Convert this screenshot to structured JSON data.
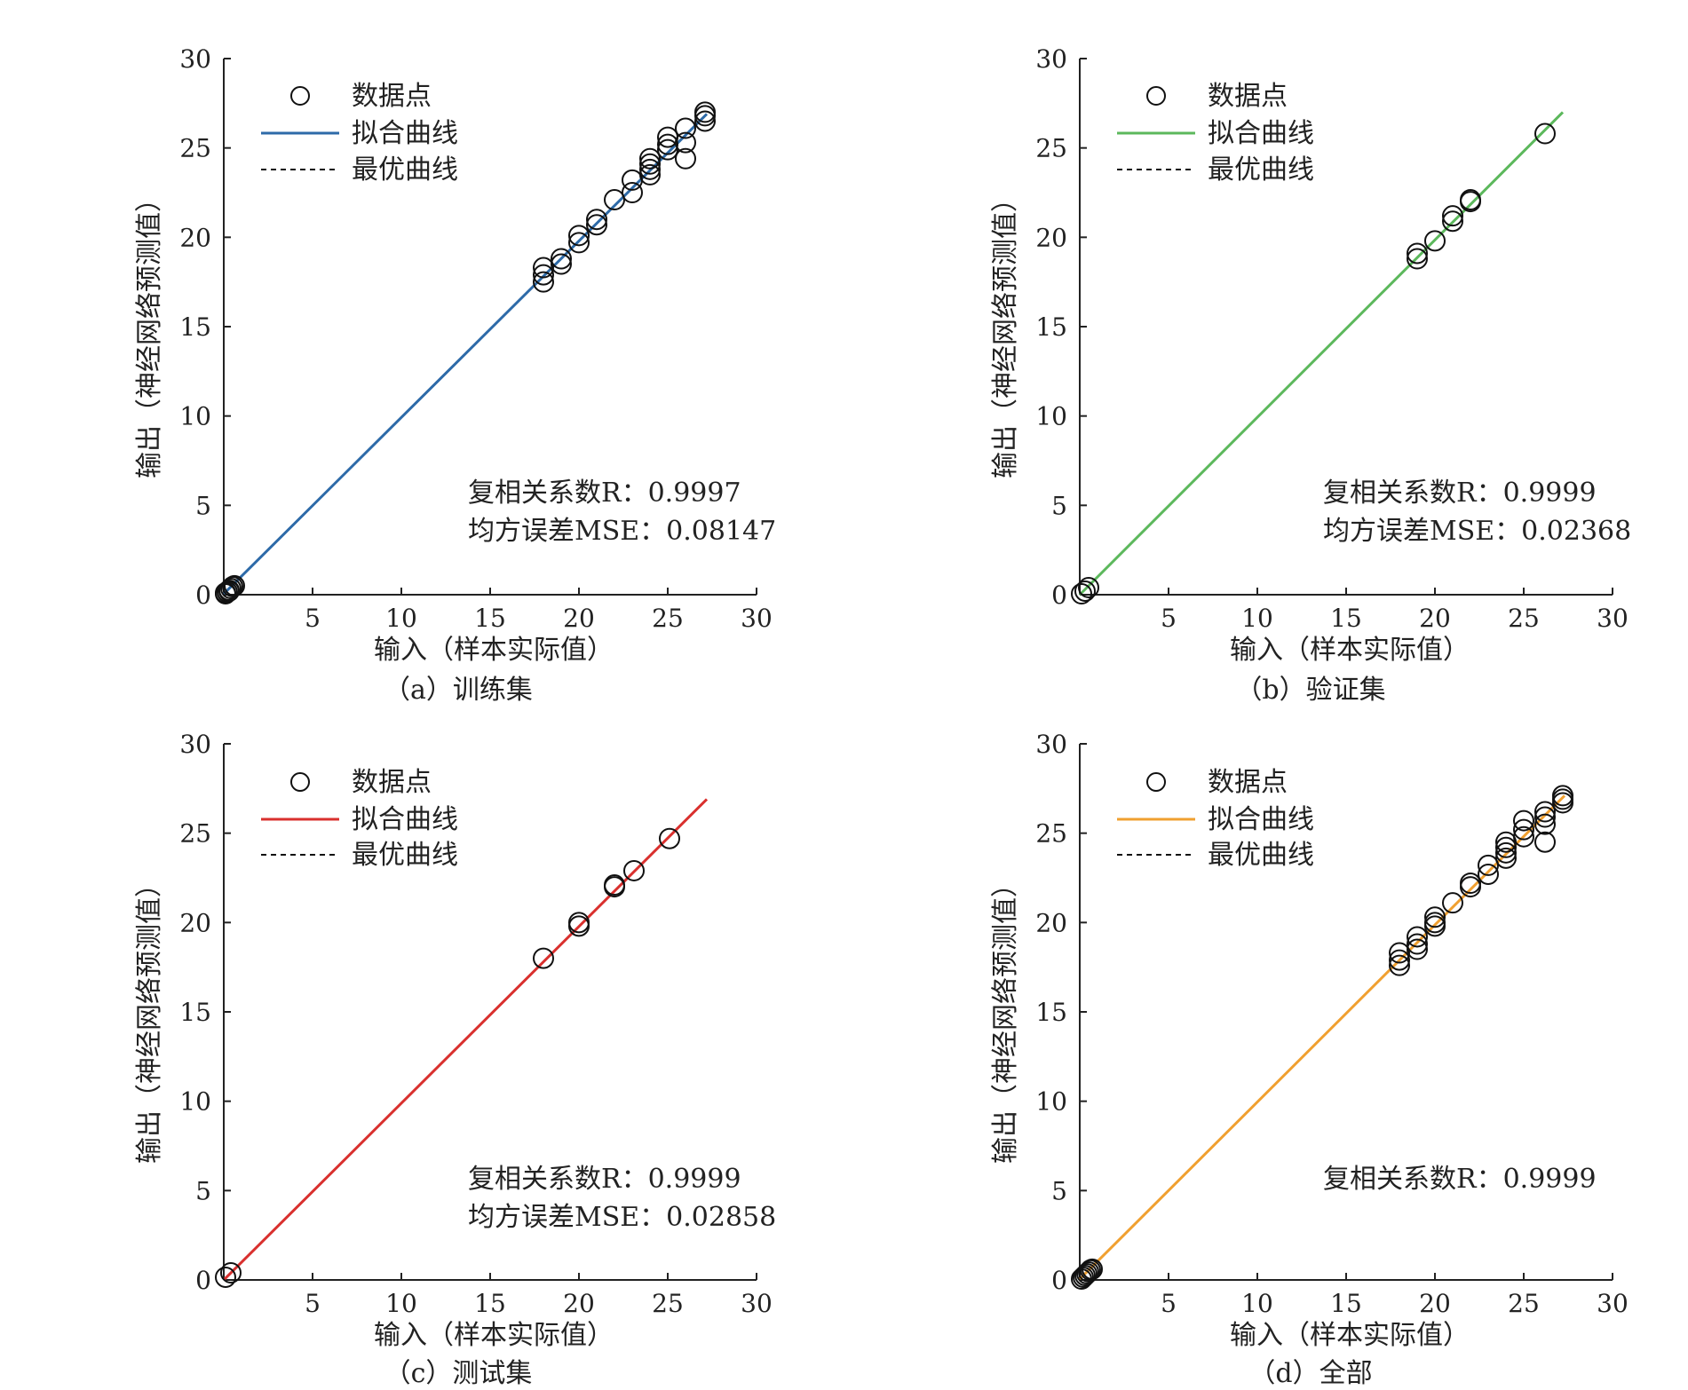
{
  "figure": {
    "panels": [
      {
        "caption": "（a）训练集",
        "xlabel": "输入（样本实际值）",
        "ylabel": "输出（神经网络预测值）",
        "legend": [
          "数据点",
          "拟合曲线",
          "最优曲线"
        ],
        "stats": [
          "复相关系数R：0.9997",
          "均方误差MSE：0.08147"
        ]
      },
      {
        "caption": "（b）验证集",
        "xlabel": "输入（样本实际值）",
        "ylabel": "输出（神经网络预测值）",
        "legend": [
          "数据点",
          "拟合曲线",
          "最优曲线"
        ],
        "stats": [
          "复相关系数R：0.9999",
          "均方误差MSE：0.02368"
        ]
      },
      {
        "caption": "（c）测试集",
        "xlabel": "输入（样本实际值）",
        "ylabel": "输出（神经网络预测值）",
        "legend": [
          "数据点",
          "拟合曲线",
          "最优曲线"
        ],
        "stats": [
          "复相关系数R：0.9999",
          "均方误差MSE：0.02858"
        ]
      },
      {
        "caption": "（d）全部",
        "xlabel": "输入（样本实际值）",
        "ylabel": "输出（神经网络预测值）",
        "legend": [
          "数据点",
          "拟合曲线",
          "最优曲线"
        ],
        "stats": [
          "复相关系数R：0.9999"
        ]
      }
    ]
  },
  "chart_data": [
    {
      "type": "scatter",
      "title": "（a）训练集",
      "xlabel": "输入（样本实际值）",
      "ylabel": "输出（神经网络预测值）",
      "xlim": [
        0,
        30
      ],
      "ylim": [
        0,
        30
      ],
      "xticks": [
        5,
        10,
        15,
        20,
        25,
        30
      ],
      "yticks": [
        0,
        5,
        10,
        15,
        20,
        25,
        30
      ],
      "fit_color": "#2d6aa8",
      "fit_line": {
        "x": [
          0,
          27.2
        ],
        "y": [
          0.05,
          26.9
        ]
      },
      "series": [
        {
          "name": "数据点",
          "x": [
            0.1,
            0.2,
            0.3,
            0.4,
            0.5,
            0.6,
            0.1,
            0.3,
            18,
            18,
            18,
            19,
            19,
            20,
            20,
            21,
            21,
            22,
            23,
            23,
            24,
            24,
            24,
            24,
            25,
            25,
            25,
            26,
            26,
            26,
            27.1,
            27.1,
            27.1
          ],
          "y": [
            0.05,
            0.15,
            0.25,
            0.35,
            0.45,
            0.5,
            0.1,
            0.2,
            18.3,
            17.9,
            17.5,
            18.8,
            18.5,
            20.1,
            19.7,
            21.0,
            20.7,
            22.1,
            23.2,
            22.5,
            24.4,
            24.1,
            23.8,
            23.5,
            25.6,
            25.2,
            24.9,
            26.1,
            25.3,
            24.4,
            27.0,
            26.8,
            26.5
          ]
        }
      ],
      "stats": {
        "R": 0.9997,
        "MSE": 0.08147
      }
    },
    {
      "type": "scatter",
      "title": "（b）验证集",
      "xlabel": "输入（样本实际值）",
      "ylabel": "输出（神经网络预测值）",
      "xlim": [
        0,
        30
      ],
      "ylim": [
        0,
        30
      ],
      "xticks": [
        5,
        10,
        15,
        20,
        25,
        30
      ],
      "yticks": [
        0,
        5,
        10,
        15,
        20,
        25,
        30
      ],
      "fit_color": "#5cb85c",
      "fit_line": {
        "x": [
          0,
          27.2
        ],
        "y": [
          0,
          27.0
        ]
      },
      "series": [
        {
          "name": "数据点",
          "x": [
            0.1,
            0.3,
            0.5,
            19,
            19,
            20,
            21,
            21,
            22,
            22,
            26.2
          ],
          "y": [
            0.05,
            0.2,
            0.4,
            19.1,
            18.8,
            19.8,
            21.2,
            20.9,
            22.1,
            22.0,
            25.8
          ]
        }
      ],
      "stats": {
        "R": 0.9999,
        "MSE": 0.02368
      }
    },
    {
      "type": "scatter",
      "title": "（c）测试集",
      "xlabel": "输入（样本实际值）",
      "ylabel": "输出（神经网络预测值）",
      "xlim": [
        0,
        30
      ],
      "ylim": [
        0,
        30
      ],
      "xticks": [
        5,
        10,
        15,
        20,
        25,
        30
      ],
      "yticks": [
        0,
        5,
        10,
        15,
        20,
        25,
        30
      ],
      "fit_color": "#d9302e",
      "fit_line": {
        "x": [
          0,
          27.2
        ],
        "y": [
          0,
          26.9
        ]
      },
      "series": [
        {
          "name": "数据点",
          "x": [
            0.1,
            0.4,
            18,
            20,
            20,
            22,
            22,
            23.1,
            25.1
          ],
          "y": [
            0.15,
            0.4,
            18.0,
            20.0,
            19.8,
            22.0,
            22.1,
            22.9,
            24.7
          ]
        }
      ],
      "stats": {
        "R": 0.9999,
        "MSE": 0.02858
      }
    },
    {
      "type": "scatter",
      "title": "（d）全部",
      "xlabel": "输入（样本实际值）",
      "ylabel": "输出（神经网络预测值）",
      "xlim": [
        0,
        30
      ],
      "ylim": [
        0,
        30
      ],
      "xticks": [
        5,
        10,
        15,
        20,
        25,
        30
      ],
      "yticks": [
        0,
        5,
        10,
        15,
        20,
        25,
        30
      ],
      "fit_color": "#f0a030",
      "fit_line": {
        "x": [
          0,
          27.3
        ],
        "y": [
          0.05,
          27.1
        ]
      },
      "series": [
        {
          "name": "数据点",
          "x": [
            0.1,
            0.2,
            0.3,
            0.4,
            0.5,
            0.6,
            0.7,
            18,
            18,
            18,
            19,
            19,
            19,
            20,
            20,
            20,
            21,
            22,
            22,
            23,
            23,
            24,
            24,
            24,
            24,
            25,
            25,
            25,
            26.2,
            26.2,
            26.2,
            26.2,
            27.2,
            27.2,
            27.2
          ],
          "y": [
            0.05,
            0.15,
            0.25,
            0.35,
            0.45,
            0.55,
            0.6,
            18.3,
            17.9,
            17.6,
            19.2,
            18.8,
            18.5,
            20.3,
            20.0,
            19.8,
            21.1,
            22.2,
            22.0,
            23.2,
            22.7,
            24.5,
            24.2,
            23.9,
            23.6,
            25.7,
            25.2,
            24.8,
            26.2,
            25.9,
            25.5,
            24.5,
            27.1,
            26.9,
            26.7
          ]
        }
      ],
      "stats": {
        "R": 0.9999
      }
    }
  ]
}
